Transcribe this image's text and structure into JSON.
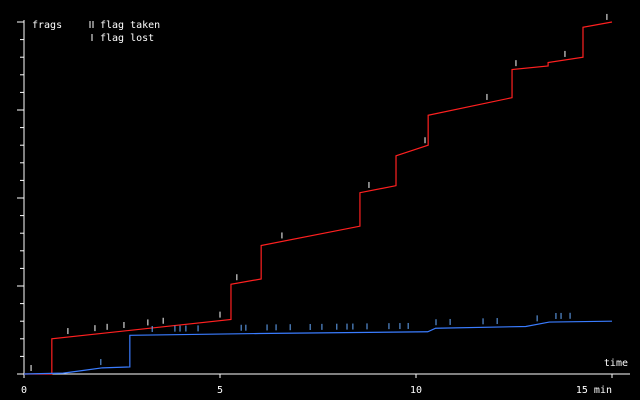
{
  "chart_data": {
    "type": "line",
    "y_label": "frags",
    "x_label": "time",
    "legend": [
      "flag taken",
      "flag lost"
    ],
    "xlim": [
      0,
      15
    ],
    "xticks": [
      0,
      5,
      10,
      {
        "value": 15,
        "label": "15 min"
      }
    ],
    "ylim": [
      0,
      200
    ],
    "yticks": [
      0,
      10,
      20,
      30,
      40,
      50,
      60,
      70,
      80,
      90,
      100,
      110,
      120,
      130,
      140,
      150,
      160,
      170,
      180,
      190,
      200
    ],
    "series": [
      {
        "color": "#ff2020",
        "marker_color": "#ffffff",
        "x": [
          0,
          0.71,
          0.71,
          5.28,
          5.28,
          6.05,
          6.05,
          8.57,
          8.57,
          9.49,
          9.49,
          10.31,
          10.31,
          12.45,
          12.45,
          13.37,
          13.37,
          14.26,
          14.26,
          15
        ],
        "values": [
          0,
          0,
          20,
          31,
          51,
          54,
          73,
          84,
          103,
          107,
          124,
          130,
          147,
          157,
          173,
          175,
          177,
          180,
          197,
          200
        ],
        "flags": [
          0.18,
          1.12,
          1.81,
          2.12,
          2.55,
          3.16,
          3.55,
          5.0,
          5.43,
          6.58,
          8.8,
          10.23,
          11.81,
          12.55,
          13.8,
          14.87
        ]
      },
      {
        "color": "#3a7cff",
        "marker_color": "#66aaff",
        "x": [
          0,
          1.0,
          1.5,
          2.0,
          2.7,
          2.7,
          6.0,
          10.3,
          10.5,
          12.8,
          13.4,
          15
        ],
        "values": [
          0,
          0.5,
          2,
          3.5,
          4,
          22,
          23,
          24,
          26,
          27,
          29.5,
          30
        ],
        "flags": [
          1.96,
          3.27,
          3.85,
          3.98,
          4.13,
          4.44,
          5.54,
          5.66,
          6.2,
          6.43,
          6.79,
          7.3,
          7.6,
          7.98,
          8.24,
          8.39,
          8.75,
          9.31,
          9.59,
          9.8,
          10.51,
          10.87,
          11.71,
          12.07,
          13.09,
          13.57,
          13.7,
          13.93
        ]
      }
    ]
  }
}
